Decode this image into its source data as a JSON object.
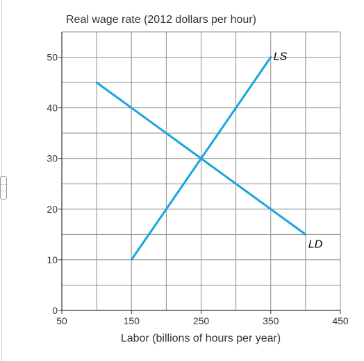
{
  "chart_data": {
    "type": "line",
    "title": "",
    "ylabel": "Real wage rate (2012 dollars per hour)",
    "xlabel": "Labor (billions of hours per year)",
    "xlim": [
      50,
      450
    ],
    "ylim": [
      0,
      55
    ],
    "x_ticks": [
      50,
      150,
      250,
      350,
      450
    ],
    "y_ticks": [
      0,
      10,
      20,
      30,
      40,
      50
    ],
    "x_grid_step": 50,
    "y_grid_step": 5,
    "grid": true,
    "legend": "none",
    "series": [
      {
        "name": "LS",
        "color": "#1aa3de",
        "points": [
          [
            150,
            10
          ],
          [
            350,
            50
          ]
        ]
      },
      {
        "name": "LD",
        "color": "#1aa3de",
        "points": [
          [
            100,
            45
          ],
          [
            400,
            15
          ]
        ]
      }
    ]
  }
}
